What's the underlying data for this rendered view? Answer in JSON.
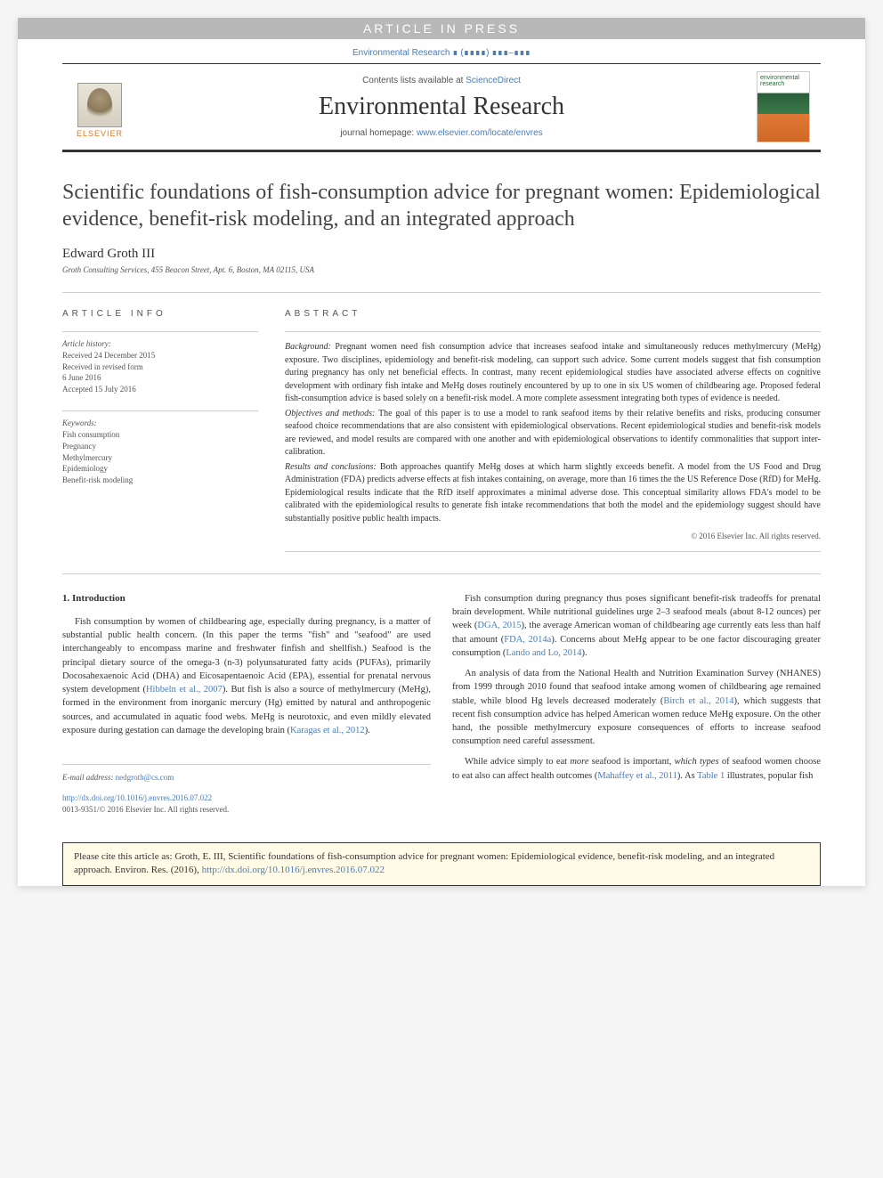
{
  "banner": {
    "article_in_press": "ARTICLE IN PRESS",
    "header_link_text": "Environmental Research ∎ (∎∎∎∎) ∎∎∎–∎∎∎",
    "contents_text": "Contents lists available at ",
    "contents_link": "ScienceDirect",
    "journal_name": "Environmental Research",
    "homepage_label": "journal homepage: ",
    "homepage_url": "www.elsevier.com/locate/envres",
    "elsevier": "ELSEVIER",
    "cover_text": "environmental research"
  },
  "article": {
    "title": "Scientific foundations of fish-consumption advice for pregnant women: Epidemiological evidence, benefit-risk modeling, and an integrated approach",
    "author": "Edward Groth III",
    "affiliation": "Groth Consulting Services, 455 Beacon Street, Apt. 6, Boston, MA 02115, USA"
  },
  "info": {
    "section_label": "ARTICLE INFO",
    "history_label": "Article history:",
    "history": [
      "Received 24 December 2015",
      "Received in revised form",
      "6 June 2016",
      "Accepted 15 July 2016"
    ],
    "keywords_label": "Keywords:",
    "keywords": [
      "Fish consumption",
      "Pregnancy",
      "Methylmercury",
      "Epidemiology",
      "Benefit-risk modeling"
    ]
  },
  "abstract": {
    "section_label": "ABSTRACT",
    "background_head": "Background: ",
    "background": "Pregnant women need fish consumption advice that increases seafood intake and simultaneously reduces methylmercury (MeHg) exposure. Two disciplines, epidemiology and benefit-risk modeling, can support such advice. Some current models suggest that fish consumption during pregnancy has only net beneficial effects. In contrast, many recent epidemiological studies have associated adverse effects on cognitive development with ordinary fish intake and MeHg doses routinely encountered by up to one in six US women of childbearing age. Proposed federal fish-consumption advice is based solely on a benefit-risk model. A more complete assessment integrating both types of evidence is needed.",
    "objectives_head": "Objectives and methods: ",
    "objectives": "The goal of this paper is to use a model to rank seafood items by their relative benefits and risks, producing consumer seafood choice recommendations that are also consistent with epidemiological observations. Recent epidemiological studies and benefit-risk models are reviewed, and model results are compared with one another and with epidemiological observations to identify commonalities that support inter-calibration.",
    "results_head": "Results and conclusions: ",
    "results": "Both approaches quantify MeHg doses at which harm slightly exceeds benefit. A model from the US Food and Drug Administration (FDA) predicts adverse effects at fish intakes containing, on average, more than 16 times the the US Reference Dose (RfD) for MeHg. Epidemiological results indicate that the RfD itself approximates a minimal adverse dose. This conceptual similarity allows FDA's model to be calibrated with the epidemiological results to generate fish intake recommendations that both the model and the epidemiology suggest should have substantially positive public health impacts.",
    "copyright": "© 2016 Elsevier Inc. All rights reserved."
  },
  "body": {
    "section_heading": "1. Introduction",
    "col1_p1a": "Fish consumption by women of childbearing age, especially during pregnancy, is a matter of substantial public health concern. (In this paper the terms \"fish\" and \"seafood\" are used interchangeably to encompass marine and freshwater finfish and shellfish.) Seafood is the principal dietary source of the omega-3 (n-3) polyunsaturated fatty acids (PUFAs), primarily Docosahexaenoic Acid (DHA) and Eicosapentaenoic Acid (EPA), essential for prenatal nervous system development (",
    "col1_p1_cite1": "Hibbeln et al., 2007",
    "col1_p1b": "). But fish is also a source of methylmercury (MeHg), formed in the environment from inorganic mercury (Hg) emitted by natural and anthropogenic sources, and accumulated in aquatic food webs. MeHg is neurotoxic, and even mildly elevated exposure during gestation can damage the developing brain (",
    "col1_p1_cite2": "Karagas et al., 2012",
    "col1_p1c": ").",
    "col2_p1a": "Fish consumption during pregnancy thus poses significant benefit-risk tradeoffs for prenatal brain development. While nutritional guidelines urge 2–3 seafood meals (about 8-12 ounces) per week (",
    "col2_p1_cite1": "DGA, 2015",
    "col2_p1b": "), the average American woman of childbearing age currently eats less than half that amount (",
    "col2_p1_cite2": "FDA, 2014a",
    "col2_p1c": "). Concerns about MeHg appear to be one factor discouraging greater consumption (",
    "col2_p1_cite3": "Lando and Lo, 2014",
    "col2_p1d": ").",
    "col2_p2a": "An analysis of data from the National Health and Nutrition Examination Survey (NHANES) from 1999 through 2010 found that seafood intake among women of childbearing age remained stable, while blood Hg levels decreased moderately (",
    "col2_p2_cite1": "Birch et al., 2014",
    "col2_p2b": "), which suggests that recent fish consumption advice has helped American women reduce MeHg exposure. On the other hand, the possible methylmercury exposure consequences of efforts to increase seafood consumption need careful assessment.",
    "col2_p3a": "While advice simply to eat ",
    "col2_p3_em1": "more",
    "col2_p3b": " seafood is important, ",
    "col2_p3_em2": "which types",
    "col2_p3c": " of seafood women choose to eat also can affect health outcomes (",
    "col2_p3_cite1": "Mahaffey et al., 2011",
    "col2_p3d": "). As ",
    "col2_p3_cite2": "Table 1",
    "col2_p3e": " illustrates, popular fish"
  },
  "footer": {
    "email_label": "E-mail address: ",
    "email": "nedgroth@cs.com",
    "doi_url": "http://dx.doi.org/10.1016/j.envres.2016.07.022",
    "issn": "0013-9351/© 2016 Elsevier Inc. All rights reserved."
  },
  "citation": {
    "text_a": "Please cite this article as: Groth, E. III, Scientific foundations of fish-consumption advice for pregnant women: Epidemiological evidence, benefit-risk modeling, and an integrated approach. Environ. Res. (2016), ",
    "doi": "http://dx.doi.org/10.1016/j.envres.2016.07.022"
  },
  "colors": {
    "link": "#4a7db8",
    "elsevier_orange": "#e67817",
    "banner_gray": "#b8b8b8",
    "citation_bg": "#fffbe6"
  }
}
